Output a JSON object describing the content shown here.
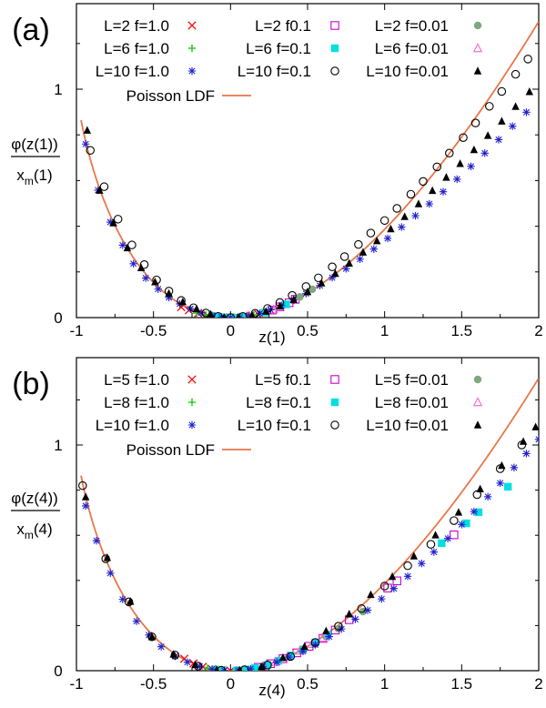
{
  "chart_data": [
    {
      "type": "scatter",
      "panel_label": "(a)",
      "xlabel": "z(1)",
      "ylabel": {
        "num": "φ(z(1))",
        "den_base": "x",
        "den_sub": "m",
        "den_tail": "(1)"
      },
      "xlim": [
        -1,
        2
      ],
      "ylim": [
        0,
        1.3
      ],
      "xticks": [
        "-1",
        "-0.5",
        "0",
        "0.5",
        "1",
        "1.5",
        "2"
      ],
      "yticks": [
        "0",
        "1"
      ],
      "grid": false,
      "legend_position": "top",
      "curve": {
        "name": "Poisson LDF",
        "color": "#e8774a",
        "x_range": [
          -0.97,
          2.0
        ],
        "formula": "(1+z)ln(1+z)-z"
      },
      "series": [
        {
          "name": "L=2 f=1.0",
          "marker": "x",
          "color": "#ff0000",
          "x": [
            -0.32,
            -0.27,
            -0.21,
            -0.15,
            -0.09,
            -0.05,
            0.0,
            0.04,
            0.08,
            0.13,
            0.18
          ],
          "y": [
            0.046,
            0.032,
            0.019,
            0.01,
            0.004,
            0.001,
            0.0,
            0.001,
            0.003,
            0.008,
            0.015
          ]
        },
        {
          "name": "L=2 f0.1",
          "marker": "square-open",
          "color": "#cc00cc",
          "x": [
            0.27,
            0.32,
            0.38,
            0.42
          ],
          "y": [
            0.033,
            0.047,
            0.065,
            0.08
          ]
        },
        {
          "name": "L=2 f=0.01",
          "marker": "circle-filled",
          "color": "#7fa87f",
          "x": [
            0.45,
            0.53
          ],
          "y": [
            0.091,
            0.124
          ]
        },
        {
          "name": "L=6 f=1.0",
          "marker": "plus",
          "color": "#00cc00",
          "x": [
            -0.22,
            -0.16,
            -0.11,
            -0.06,
            -0.02,
            0.02,
            0.06,
            0.11,
            0.15
          ],
          "y": [
            0.02,
            0.011,
            0.006,
            0.002,
            0.0,
            0.0,
            0.002,
            0.006,
            0.011
          ]
        },
        {
          "name": "L=6 f=0.1",
          "marker": "square-filled",
          "color": "#00e0e0",
          "x": [
            -0.12,
            -0.07,
            -0.03,
            0.03,
            0.07,
            0.22,
            0.36
          ],
          "y": [
            0.007,
            0.002,
            0.0,
            0.0,
            0.002,
            0.022,
            0.058
          ]
        },
        {
          "name": "L=6 f=0.01",
          "marker": "triangle-open",
          "color": "#ff66cc",
          "x": [
            0.12,
            0.28
          ],
          "y": [
            0.007,
            0.035
          ]
        },
        {
          "name": "L=10 f=1.0",
          "marker": "asterisk",
          "color": "#2222cc",
          "x": [
            -0.94,
            -0.86,
            -0.78,
            -0.7,
            -0.63,
            -0.55,
            -0.47,
            -0.4,
            -0.33,
            -0.26,
            -0.19,
            -0.12,
            -0.06,
            0.0,
            0.06,
            0.12,
            0.19,
            0.26,
            0.33,
            0.41,
            0.49,
            0.58,
            0.66,
            0.75,
            0.84,
            0.93,
            1.02,
            1.11,
            1.2,
            1.29,
            1.38,
            1.47,
            1.56,
            1.65,
            1.74,
            1.83,
            1.92
          ],
          "y": [
            0.76,
            0.558,
            0.418,
            0.317,
            0.236,
            0.173,
            0.125,
            0.088,
            0.06,
            0.038,
            0.021,
            0.009,
            0.002,
            0.0,
            0.002,
            0.008,
            0.018,
            0.034,
            0.053,
            0.077,
            0.105,
            0.14,
            0.175,
            0.214,
            0.256,
            0.3,
            0.347,
            0.396,
            0.446,
            0.498,
            0.551,
            0.606,
            0.662,
            0.72,
            0.779,
            0.838,
            0.899
          ]
        },
        {
          "name": "L=10 f=0.1",
          "marker": "circle-open",
          "color": "#000000",
          "x": [
            -0.91,
            -0.82,
            -0.73,
            -0.64,
            -0.56,
            -0.48,
            -0.4,
            -0.32,
            -0.24,
            -0.16,
            -0.08,
            0.0,
            0.08,
            0.16,
            0.24,
            0.32,
            0.4,
            0.49,
            0.57,
            0.66,
            0.74,
            0.83,
            0.91,
            1.0,
            1.08,
            1.17,
            1.25,
            1.34,
            1.42,
            1.51,
            1.59,
            1.68,
            1.76,
            1.85,
            1.93
          ],
          "y": [
            0.732,
            0.573,
            0.431,
            0.318,
            0.232,
            0.165,
            0.116,
            0.075,
            0.043,
            0.02,
            0.005,
            0.0,
            0.005,
            0.019,
            0.04,
            0.066,
            0.097,
            0.136,
            0.174,
            0.222,
            0.267,
            0.32,
            0.37,
            0.425,
            0.478,
            0.54,
            0.596,
            0.66,
            0.72,
            0.788,
            0.852,
            0.925,
            0.99,
            1.065,
            1.132
          ]
        },
        {
          "name": "L=10 f=0.01",
          "marker": "triangle-filled",
          "color": "#000000",
          "x": [
            -0.93,
            -0.85,
            -0.76,
            -0.67,
            -0.58,
            -0.49,
            -0.4,
            -0.31,
            -0.22,
            -0.13,
            -0.04,
            0.05,
            0.14,
            0.23,
            0.32,
            0.41,
            0.5,
            0.59,
            0.68,
            0.77,
            0.86,
            0.95,
            1.04,
            1.13,
            1.22,
            1.31,
            1.4,
            1.49,
            1.58,
            1.67,
            1.76,
            1.85,
            1.94
          ],
          "y": [
            0.82,
            0.557,
            0.414,
            0.305,
            0.218,
            0.156,
            0.106,
            0.069,
            0.038,
            0.015,
            0.001,
            0.001,
            0.01,
            0.027,
            0.05,
            0.079,
            0.113,
            0.151,
            0.193,
            0.238,
            0.286,
            0.336,
            0.388,
            0.442,
            0.498,
            0.556,
            0.614,
            0.674,
            0.735,
            0.797,
            0.86,
            0.924,
            0.989
          ]
        }
      ]
    },
    {
      "type": "scatter",
      "panel_label": "(b)",
      "xlabel": "z(4)",
      "ylabel": {
        "num": "φ(z(4))",
        "den_base": "x",
        "den_sub": "m",
        "den_tail": "(4)"
      },
      "xlim": [
        -1,
        2
      ],
      "ylim": [
        0,
        1.3
      ],
      "xticks": [
        "-1",
        "-0.5",
        "0",
        "0.5",
        "1",
        "1.5",
        "2"
      ],
      "yticks": [
        "0",
        "1"
      ],
      "grid": false,
      "legend_position": "top",
      "curve": {
        "name": "Poisson LDF",
        "color": "#e8774a",
        "x_range": [
          -0.97,
          2.0
        ],
        "formula": "(1+z)ln(1+z)-z"
      },
      "series": [
        {
          "name": "L=5 f=1.0",
          "marker": "x",
          "color": "#ff0000",
          "x": [
            -0.3,
            -0.24,
            -0.18,
            -0.12,
            -0.06,
            0.0,
            0.06,
            0.12
          ],
          "y": [
            0.053,
            0.032,
            0.017,
            0.007,
            0.002,
            0.0,
            0.002,
            0.006
          ]
        },
        {
          "name": "L=5 f0.1",
          "marker": "square-open",
          "color": "#cc00cc",
          "x": [
            0.18,
            0.26,
            0.34,
            0.43,
            0.51,
            0.6,
            0.68,
            0.77,
            1.02,
            1.08,
            1.45
          ],
          "y": [
            0.015,
            0.031,
            0.053,
            0.079,
            0.108,
            0.143,
            0.18,
            0.226,
            0.366,
            0.398,
            0.602
          ]
        },
        {
          "name": "L=5 f=0.01",
          "marker": "circle-filled",
          "color": "#7fa87f",
          "x": [
            0.38,
            0.46,
            0.54,
            0.62,
            0.7,
            0.86
          ],
          "y": [
            0.064,
            0.09,
            0.12,
            0.151,
            0.186,
            0.262
          ]
        },
        {
          "name": "L=8 f=1.0",
          "marker": "plus",
          "color": "#00cc00",
          "x": [
            -0.15,
            -0.09,
            -0.04,
            0.03,
            0.08,
            0.14,
            0.22
          ],
          "y": [
            0.011,
            0.004,
            0.001,
            0.0,
            0.003,
            0.009,
            0.02
          ]
        },
        {
          "name": "L=8 f=0.1",
          "marker": "square-filled",
          "color": "#00e0e0",
          "x": [
            -0.1,
            -0.05,
            0.04,
            0.1,
            0.16,
            0.24,
            0.31,
            0.39,
            0.47,
            0.55,
            0.63,
            1.37,
            1.53,
            1.61,
            1.8
          ],
          "y": [
            0.005,
            0.001,
            0.001,
            0.005,
            0.012,
            0.025,
            0.044,
            0.067,
            0.094,
            0.125,
            0.159,
            0.565,
            0.653,
            0.702,
            0.815
          ]
        },
        {
          "name": "L=8 f=0.01",
          "marker": "triangle-open",
          "color": "#ff66cc",
          "x": [
            0.21,
            0.29,
            0.37,
            0.45,
            0.53,
            0.6
          ],
          "y": [
            0.02,
            0.038,
            0.062,
            0.088,
            0.118,
            0.146
          ]
        },
        {
          "name": "L=10 f=1.0",
          "marker": "asterisk",
          "color": "#2222cc",
          "x": [
            -0.94,
            -0.87,
            -0.78,
            -0.7,
            -0.61,
            -0.53,
            -0.45,
            -0.36,
            -0.28,
            -0.2,
            -0.12,
            -0.04,
            0.05,
            0.13,
            0.21,
            0.3,
            0.38,
            0.47,
            0.55,
            0.64,
            0.72,
            0.81,
            0.89,
            0.98,
            1.06,
            1.15,
            1.24,
            1.32,
            1.41,
            1.5,
            1.58,
            1.67,
            1.75,
            1.84,
            1.92,
            2.0
          ],
          "y": [
            0.73,
            0.576,
            0.432,
            0.316,
            0.219,
            0.158,
            0.106,
            0.064,
            0.038,
            0.019,
            0.007,
            0.001,
            0.001,
            0.008,
            0.019,
            0.038,
            0.06,
            0.086,
            0.115,
            0.151,
            0.185,
            0.228,
            0.268,
            0.318,
            0.364,
            0.418,
            0.475,
            0.526,
            0.586,
            0.648,
            0.705,
            0.771,
            0.831,
            0.9,
            0.962,
            1.025
          ]
        },
        {
          "name": "L=10 f=0.1",
          "marker": "circle-open",
          "color": "#000000",
          "x": [
            -0.96,
            -0.81,
            -0.66,
            -0.51,
            -0.36,
            -0.21,
            -0.06,
            0.09,
            0.24,
            0.39,
            0.55,
            0.7,
            0.85,
            1.0,
            1.15,
            1.3,
            1.45,
            1.6,
            1.75,
            1.89
          ],
          "y": [
            0.82,
            0.496,
            0.305,
            0.15,
            0.069,
            0.02,
            0.002,
            0.004,
            0.025,
            0.063,
            0.125,
            0.197,
            0.275,
            0.375,
            0.465,
            0.56,
            0.665,
            0.78,
            0.895,
            1.0
          ]
        },
        {
          "name": "L=10 f=0.01",
          "marker": "triangle-filled",
          "color": "#000000",
          "x": [
            -0.94,
            -0.8,
            -0.65,
            -0.51,
            -0.37,
            -0.23,
            -0.09,
            0.06,
            0.2,
            0.34,
            0.48,
            0.62,
            0.77,
            0.91,
            1.05,
            1.19,
            1.33,
            1.48,
            1.62,
            1.76,
            1.9,
            1.98
          ],
          "y": [
            0.77,
            0.501,
            0.307,
            0.15,
            0.073,
            0.026,
            0.004,
            0.002,
            0.018,
            0.058,
            0.107,
            0.176,
            0.251,
            0.337,
            0.417,
            0.508,
            0.601,
            0.702,
            0.805,
            0.909,
            1.016,
            1.08
          ]
        }
      ]
    }
  ]
}
